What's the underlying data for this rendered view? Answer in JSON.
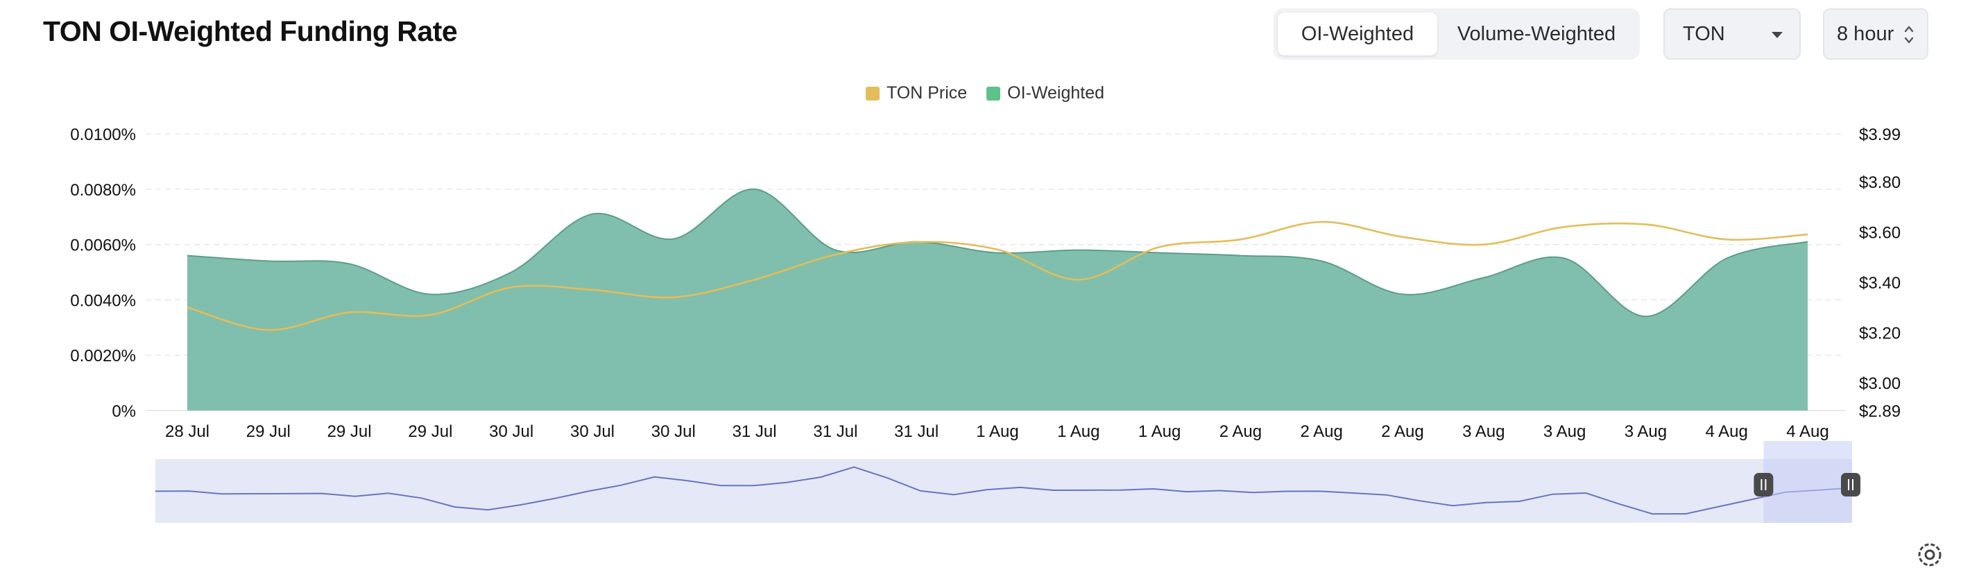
{
  "header": {
    "title": "TON OI-Weighted Funding Rate",
    "tabs": [
      {
        "label": "OI-Weighted",
        "active": true
      },
      {
        "label": "Volume-Weighted",
        "active": false
      }
    ],
    "coin_select": "TON",
    "interval_select": "8 hour"
  },
  "colors": {
    "price": "#e3bd5a",
    "funding_fill": "#80bfad",
    "funding_stroke": "#5a9e88",
    "legend_funding": "#5cc28a",
    "navigator_fill": "#e5e9f7",
    "navigator_line": "#6674c4"
  },
  "icons": {
    "settings": "gear-icon",
    "watermark": "coinglass-logo"
  },
  "chart_data": {
    "type": "area",
    "legend": [
      "TON Price",
      "OI-Weighted"
    ],
    "legend_position": "top-center",
    "x_labels": [
      "28 Jul",
      "29 Jul",
      "29 Jul",
      "29 Jul",
      "30 Jul",
      "30 Jul",
      "30 Jul",
      "31 Jul",
      "31 Jul",
      "31 Jul",
      "1 Aug",
      "1 Aug",
      "1 Aug",
      "2 Aug",
      "2 Aug",
      "2 Aug",
      "3 Aug",
      "3 Aug",
      "3 Aug",
      "4 Aug",
      "4 Aug"
    ],
    "y_left": {
      "ticks": [
        "0%",
        "0.0020%",
        "0.0040%",
        "0.0060%",
        "0.0080%",
        "0.0100%"
      ],
      "range": [
        0,
        0.01
      ]
    },
    "y_right": {
      "ticks": [
        "$2.89",
        "$3.00",
        "$3.20",
        "$3.40",
        "$3.60",
        "$3.80",
        "$3.99"
      ],
      "tick_values": [
        2.89,
        3.0,
        3.2,
        3.4,
        3.6,
        3.8,
        3.99
      ],
      "range": [
        2.89,
        3.99
      ]
    },
    "grid": "horizontal-dashed",
    "series": [
      {
        "name": "OI-Weighted",
        "axis": "left",
        "values": [
          0.0056,
          0.0054,
          0.0053,
          0.0042,
          0.005,
          0.0071,
          0.0062,
          0.008,
          0.0058,
          0.0061,
          0.0057,
          0.0058,
          0.0057,
          0.0056,
          0.0054,
          0.0042,
          0.0048,
          0.0055,
          0.0034,
          0.0055,
          0.0061
        ]
      },
      {
        "name": "TON Price",
        "axis": "right",
        "values": [
          3.3,
          3.21,
          3.28,
          3.27,
          3.38,
          3.37,
          3.34,
          3.41,
          3.51,
          3.56,
          3.53,
          3.41,
          3.54,
          3.57,
          3.64,
          3.58,
          3.55,
          3.62,
          3.63,
          3.57,
          3.59
        ]
      }
    ]
  },
  "navigator": {
    "series": [
      0.0056,
      0.0057,
      0.0055,
      0.0056,
      0.0054,
      0.0055,
      0.0053,
      0.0054,
      0.005,
      0.0042,
      0.004,
      0.0043,
      0.005,
      0.0058,
      0.0062,
      0.0071,
      0.0068,
      0.0064,
      0.0062,
      0.0066,
      0.0072,
      0.008,
      0.007,
      0.0058,
      0.0055,
      0.0058,
      0.0061,
      0.0059,
      0.0057,
      0.0058,
      0.006,
      0.0058,
      0.0057,
      0.0056,
      0.0058,
      0.0056,
      0.0055,
      0.0054,
      0.0049,
      0.0042,
      0.0046,
      0.0048,
      0.0053,
      0.0055,
      0.0045,
      0.0036,
      0.0034,
      0.0042,
      0.005,
      0.0055,
      0.0058,
      0.0061
    ],
    "selected_from": 0.965,
    "selected_to": 1.0
  }
}
